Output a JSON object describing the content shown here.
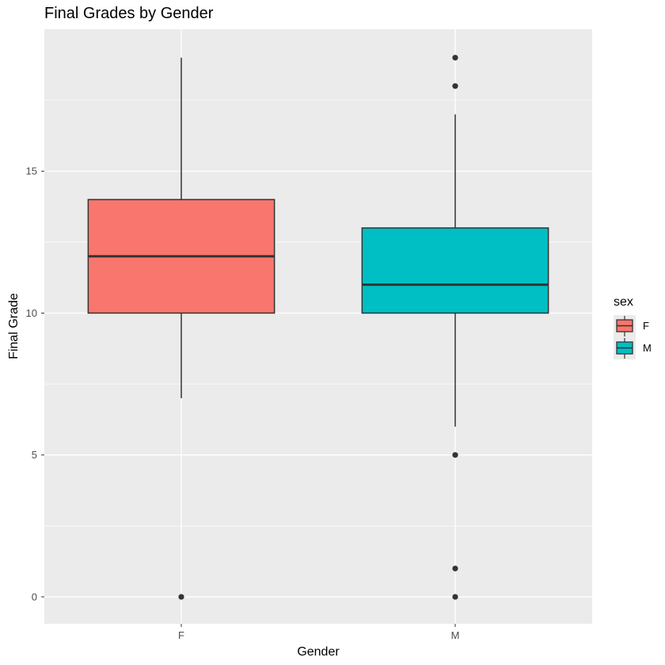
{
  "chart_data": {
    "type": "box",
    "title": "Final Grades by Gender",
    "xlabel": "Gender",
    "ylabel": "Final Grade",
    "ylim": [
      -0.95,
      20.0
    ],
    "yticks": [
      0,
      5,
      10,
      15
    ],
    "grid": true,
    "categories": [
      "F",
      "M"
    ],
    "legend": {
      "title": "sex",
      "position": "right",
      "entries": [
        "F",
        "M"
      ]
    },
    "series": [
      {
        "category": "F",
        "color": "#F8766D",
        "lower_whisker": 7,
        "q1": 10,
        "median": 12,
        "q3": 14,
        "upper_whisker": 19,
        "outliers": [
          0
        ]
      },
      {
        "category": "M",
        "color": "#00BFC4",
        "lower_whisker": 6,
        "q1": 10,
        "median": 11,
        "q3": 13,
        "upper_whisker": 17,
        "outliers": [
          19,
          18,
          5,
          1,
          0
        ]
      }
    ]
  }
}
